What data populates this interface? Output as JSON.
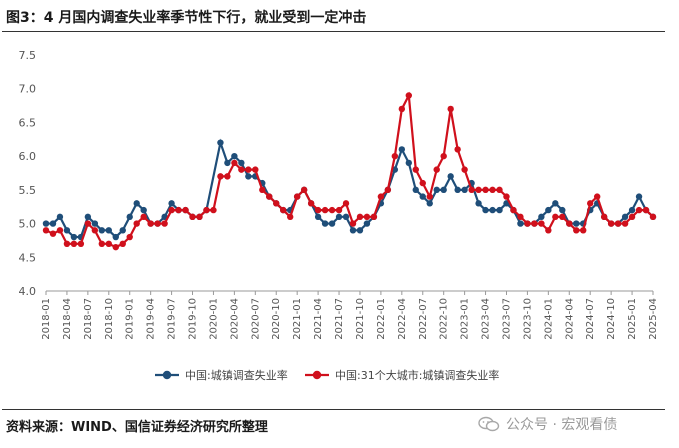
{
  "title": "图3：4 月国内调查失业率季节性下行，就业受到一定冲击",
  "source": "资料来源：WIND、国信证券经济研究所整理",
  "watermark": "公众号 · 宏观看债",
  "chart_data": {
    "type": "line",
    "title": "图3：4 月国内调查失业率季节性下行，就业受到一定冲击",
    "ylim": [
      4.0,
      7.5
    ],
    "yticks": [
      "4.0",
      "4.5",
      "5.0",
      "5.5",
      "6.0",
      "6.5",
      "7.0",
      "7.5"
    ],
    "grid": false,
    "legend": "bottom-center",
    "x_start": "2018-01",
    "x_tick_labels": [
      "2018-01",
      "2018-04",
      "2018-07",
      "2018-10",
      "2019-01",
      "2019-04",
      "2019-07",
      "2019-10",
      "2020-01",
      "2020-04",
      "2020-07",
      "2020-10",
      "2021-01",
      "2021-04",
      "2021-07",
      "2021-10",
      "2022-01",
      "2022-04",
      "2022-07",
      "2022-10",
      "2023-01",
      "2023-04",
      "2023-07",
      "2023-10",
      "2024-01",
      "2024-04",
      "2024-07",
      "2024-10",
      "2025-01",
      "2025-04"
    ],
    "series": [
      {
        "name": "中国:城镇调查失业率",
        "color": "#1f4e79",
        "points": [
          [
            "2018-01",
            5.0
          ],
          [
            "2018-02",
            5.0
          ],
          [
            "2018-03",
            5.1
          ],
          [
            "2018-04",
            4.9
          ],
          [
            "2018-05",
            4.8
          ],
          [
            "2018-06",
            4.8
          ],
          [
            "2018-07",
            5.1
          ],
          [
            "2018-08",
            5.0
          ],
          [
            "2018-09",
            4.9
          ],
          [
            "2018-10",
            4.9
          ],
          [
            "2018-11",
            4.8
          ],
          [
            "2018-12",
            4.9
          ],
          [
            "2019-01",
            5.1
          ],
          [
            "2019-02",
            5.3
          ],
          [
            "2019-03",
            5.2
          ],
          [
            "2019-04",
            5.0
          ],
          [
            "2019-05",
            5.0
          ],
          [
            "2019-06",
            5.1
          ],
          [
            "2019-07",
            5.3
          ],
          [
            "2019-08",
            5.2
          ],
          [
            "2019-09",
            5.2
          ],
          [
            "2019-10",
            5.1
          ],
          [
            "2019-11",
            5.1
          ],
          [
            "2019-12",
            5.2
          ],
          [
            "2020-02",
            6.2
          ],
          [
            "2020-03",
            5.9
          ],
          [
            "2020-04",
            6.0
          ],
          [
            "2020-05",
            5.9
          ],
          [
            "2020-06",
            5.7
          ],
          [
            "2020-07",
            5.7
          ],
          [
            "2020-08",
            5.6
          ],
          [
            "2020-09",
            5.4
          ],
          [
            "2020-10",
            5.3
          ],
          [
            "2020-11",
            5.2
          ],
          [
            "2020-12",
            5.2
          ],
          [
            "2021-01",
            5.4
          ],
          [
            "2021-02",
            5.5
          ],
          [
            "2021-03",
            5.3
          ],
          [
            "2021-04",
            5.1
          ],
          [
            "2021-05",
            5.0
          ],
          [
            "2021-06",
            5.0
          ],
          [
            "2021-07",
            5.1
          ],
          [
            "2021-08",
            5.1
          ],
          [
            "2021-09",
            4.9
          ],
          [
            "2021-10",
            4.9
          ],
          [
            "2021-11",
            5.0
          ],
          [
            "2021-12",
            5.1
          ],
          [
            "2022-01",
            5.3
          ],
          [
            "2022-02",
            5.5
          ],
          [
            "2022-03",
            5.8
          ],
          [
            "2022-04",
            6.1
          ],
          [
            "2022-05",
            5.9
          ],
          [
            "2022-06",
            5.5
          ],
          [
            "2022-07",
            5.4
          ],
          [
            "2022-08",
            5.3
          ],
          [
            "2022-09",
            5.5
          ],
          [
            "2022-10",
            5.5
          ],
          [
            "2022-11",
            5.7
          ],
          [
            "2022-12",
            5.5
          ],
          [
            "2023-01",
            5.5
          ],
          [
            "2023-02",
            5.6
          ],
          [
            "2023-03",
            5.3
          ],
          [
            "2023-04",
            5.2
          ],
          [
            "2023-05",
            5.2
          ],
          [
            "2023-06",
            5.2
          ],
          [
            "2023-07",
            5.3
          ],
          [
            "2023-08",
            5.2
          ],
          [
            "2023-09",
            5.0
          ],
          [
            "2023-10",
            5.0
          ],
          [
            "2023-11",
            5.0
          ],
          [
            "2023-12",
            5.1
          ],
          [
            "2024-01",
            5.2
          ],
          [
            "2024-02",
            5.3
          ],
          [
            "2024-03",
            5.2
          ],
          [
            "2024-04",
            5.0
          ],
          [
            "2024-05",
            5.0
          ],
          [
            "2024-06",
            5.0
          ],
          [
            "2024-07",
            5.2
          ],
          [
            "2024-08",
            5.3
          ],
          [
            "2024-09",
            5.1
          ],
          [
            "2024-10",
            5.0
          ],
          [
            "2024-11",
            5.0
          ],
          [
            "2024-12",
            5.1
          ],
          [
            "2025-01",
            5.2
          ],
          [
            "2025-02",
            5.4
          ],
          [
            "2025-03",
            5.2
          ],
          [
            "2025-04",
            5.1
          ]
        ]
      },
      {
        "name": "中国:31个大城市:城镇调查失业率",
        "color": "#d0101c",
        "points": [
          [
            "2018-01",
            4.9
          ],
          [
            "2018-02",
            4.85
          ],
          [
            "2018-03",
            4.9
          ],
          [
            "2018-04",
            4.7
          ],
          [
            "2018-05",
            4.7
          ],
          [
            "2018-06",
            4.7
          ],
          [
            "2018-07",
            5.0
          ],
          [
            "2018-08",
            4.9
          ],
          [
            "2018-09",
            4.7
          ],
          [
            "2018-10",
            4.7
          ],
          [
            "2018-11",
            4.65
          ],
          [
            "2018-12",
            4.7
          ],
          [
            "2019-01",
            4.8
          ],
          [
            "2019-02",
            5.0
          ],
          [
            "2019-03",
            5.1
          ],
          [
            "2019-04",
            5.0
          ],
          [
            "2019-05",
            5.0
          ],
          [
            "2019-06",
            5.0
          ],
          [
            "2019-07",
            5.2
          ],
          [
            "2019-08",
            5.2
          ],
          [
            "2019-09",
            5.2
          ],
          [
            "2019-10",
            5.1
          ],
          [
            "2019-11",
            5.1
          ],
          [
            "2019-12",
            5.2
          ],
          [
            "2020-01",
            5.2
          ],
          [
            "2020-02",
            5.7
          ],
          [
            "2020-03",
            5.7
          ],
          [
            "2020-04",
            5.9
          ],
          [
            "2020-05",
            5.8
          ],
          [
            "2020-06",
            5.8
          ],
          [
            "2020-07",
            5.8
          ],
          [
            "2020-08",
            5.5
          ],
          [
            "2020-09",
            5.4
          ],
          [
            "2020-10",
            5.3
          ],
          [
            "2020-11",
            5.2
          ],
          [
            "2020-12",
            5.1
          ],
          [
            "2021-01",
            5.4
          ],
          [
            "2021-02",
            5.5
          ],
          [
            "2021-03",
            5.3
          ],
          [
            "2021-04",
            5.2
          ],
          [
            "2021-05",
            5.2
          ],
          [
            "2021-06",
            5.2
          ],
          [
            "2021-07",
            5.2
          ],
          [
            "2021-08",
            5.3
          ],
          [
            "2021-09",
            5.0
          ],
          [
            "2021-10",
            5.1
          ],
          [
            "2021-11",
            5.1
          ],
          [
            "2021-12",
            5.1
          ],
          [
            "2022-01",
            5.4
          ],
          [
            "2022-02",
            5.5
          ],
          [
            "2022-03",
            6.0
          ],
          [
            "2022-04",
            6.7
          ],
          [
            "2022-05",
            6.9
          ],
          [
            "2022-06",
            5.8
          ],
          [
            "2022-07",
            5.6
          ],
          [
            "2022-08",
            5.4
          ],
          [
            "2022-09",
            5.8
          ],
          [
            "2022-10",
            6.0
          ],
          [
            "2022-11",
            6.7
          ],
          [
            "2022-12",
            6.1
          ],
          [
            "2023-01",
            5.8
          ],
          [
            "2023-02",
            5.5
          ],
          [
            "2023-03",
            5.5
          ],
          [
            "2023-04",
            5.5
          ],
          [
            "2023-05",
            5.5
          ],
          [
            "2023-06",
            5.5
          ],
          [
            "2023-07",
            5.4
          ],
          [
            "2023-08",
            5.2
          ],
          [
            "2023-09",
            5.1
          ],
          [
            "2023-10",
            5.0
          ],
          [
            "2023-11",
            5.0
          ],
          [
            "2023-12",
            5.0
          ],
          [
            "2024-01",
            4.9
          ],
          [
            "2024-02",
            5.1
          ],
          [
            "2024-03",
            5.1
          ],
          [
            "2024-04",
            5.0
          ],
          [
            "2024-05",
            4.9
          ],
          [
            "2024-06",
            4.9
          ],
          [
            "2024-07",
            5.3
          ],
          [
            "2024-08",
            5.4
          ],
          [
            "2024-09",
            5.1
          ],
          [
            "2024-10",
            5.0
          ],
          [
            "2024-11",
            5.0
          ],
          [
            "2024-12",
            5.0
          ],
          [
            "2025-01",
            5.1
          ],
          [
            "2025-02",
            5.2
          ],
          [
            "2025-03",
            5.2
          ],
          [
            "2025-04",
            5.1
          ]
        ]
      }
    ]
  }
}
